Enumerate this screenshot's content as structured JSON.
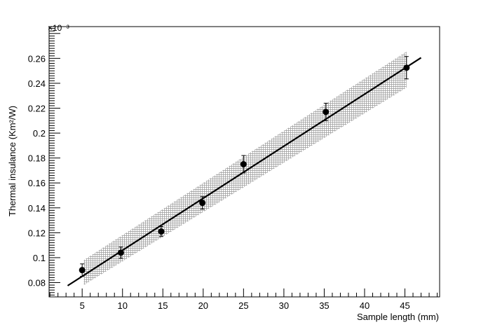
{
  "chart_data": {
    "type": "scatter",
    "title": "",
    "xlabel": "Sample length (mm)",
    "ylabel": "Thermal insulance (Km²/W)",
    "y_multiplier": "×10⁻³",
    "xlim": [
      0.9,
      49.3
    ],
    "ylim": [
      0.0685,
      0.2855
    ],
    "xticks": [
      5,
      10,
      15,
      20,
      25,
      30,
      35,
      40,
      45
    ],
    "xtick_labels": [
      "5",
      "10",
      "15",
      "20",
      "25",
      "30",
      "35",
      "40",
      "45"
    ],
    "yticks": [
      0.08,
      0.1,
      0.12,
      0.14,
      0.16,
      0.18,
      0.2,
      0.22,
      0.24,
      0.26
    ],
    "ytick_labels": [
      "0.08",
      "0.1",
      "0.12",
      "0.14",
      "0.16",
      "0.18",
      "0.2",
      "0.22",
      "0.24",
      "0.26"
    ],
    "grid": false,
    "points": [
      {
        "x": 5.0,
        "y": 0.09,
        "err": 0.005
      },
      {
        "x": 9.8,
        "y": 0.104,
        "err": 0.0045
      },
      {
        "x": 14.8,
        "y": 0.121,
        "err": 0.004
      },
      {
        "x": 19.9,
        "y": 0.144,
        "err": 0.005
      },
      {
        "x": 25.0,
        "y": 0.175,
        "err": 0.007
      },
      {
        "x": 35.2,
        "y": 0.217,
        "err": 0.007
      },
      {
        "x": 45.2,
        "y": 0.2525,
        "err": 0.009
      }
    ],
    "fit_line": {
      "x": [
        3.2,
        47.0
      ],
      "y": [
        0.0775,
        0.2605
      ]
    },
    "confidence_band": {
      "x": [
        5.2,
        45.2
      ],
      "lower": [
        0.078,
        0.2365
      ],
      "upper": [
        0.098,
        0.2655
      ]
    },
    "colors": {
      "points": "#000000",
      "line": "#000000",
      "band": "#888888"
    }
  }
}
